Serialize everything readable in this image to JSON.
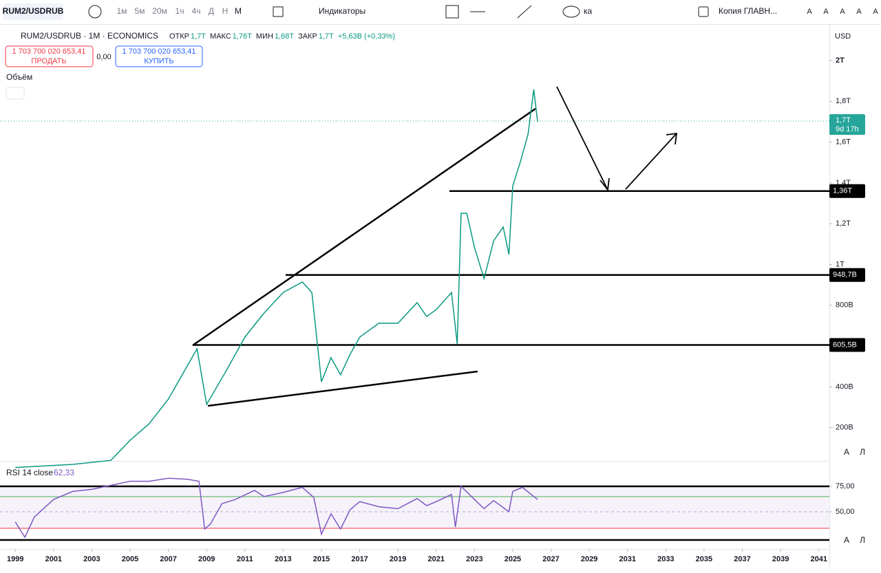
{
  "toolbar": {
    "symbol": "RUM2/USDRUB",
    "intervals": [
      "1м",
      "5м",
      "20м",
      "1ч",
      "4ч",
      "Д",
      "Н",
      "М"
    ],
    "indicators": "Индикаторы",
    "tool_fragment": "ка",
    "layout": "Копия ГЛАВН...",
    "font_buttons": [
      "A",
      "A",
      "A",
      "A",
      "A"
    ]
  },
  "legend": {
    "title": "RUM2/USDRUB · 1M · ECONOMICS",
    "ohlc": [
      {
        "label": "ОТКР",
        "value": "1,7T"
      },
      {
        "label": "МАКС",
        "value": "1,76T"
      },
      {
        "label": "МИН",
        "value": "1,68T"
      },
      {
        "label": "ЗАКР",
        "value": "1,7T"
      }
    ],
    "change": "+5,63B (+0,33%)"
  },
  "trade": {
    "sell_price": "1 703 700 020 653,41",
    "sell": "ПРОДАТЬ",
    "spread": "0,00",
    "buy_price": "1 703 700 020 653,41",
    "buy": "КУПИТЬ"
  },
  "volume_label": "Объём",
  "price_chart": {
    "type": "line",
    "currency": "USD",
    "x": [
      1999,
      2000,
      2002,
      2004,
      2005,
      2006,
      2007,
      2008.5,
      2009,
      2010,
      2011,
      2012,
      2013,
      2014,
      2014.5,
      2015,
      2015.5,
      2016,
      2016.5,
      2017,
      2018,
      2019,
      2020,
      2020.5,
      2021,
      2021.8,
      2022.1,
      2022.3,
      2022.6,
      2023,
      2023.5,
      2024,
      2024.5,
      2024.8,
      2025,
      2025.4,
      2025.8,
      2026.1,
      2026.3
    ],
    "values": [
      5,
      10,
      20,
      40,
      138,
      220,
      340,
      587,
      314,
      475,
      644,
      762,
      863,
      914,
      863,
      425,
      543,
      459,
      560,
      644,
      712,
      712,
      813,
      745,
      779,
      863,
      610,
      1251,
      1251,
      1083,
      931,
      1116,
      1184,
      1049,
      1386,
      1504,
      1639,
      1858,
      1700
    ],
    "ylim": [
      44,
      2162
    ],
    "yticks": [
      {
        "value": 200,
        "label": "200B"
      },
      {
        "value": 400,
        "label": "400B"
      },
      {
        "value": 800,
        "label": "800B"
      },
      {
        "value": 1000,
        "label": "1T"
      },
      {
        "value": 1200,
        "label": "1,2T"
      },
      {
        "value": 1400,
        "label": "1,4T"
      },
      {
        "value": 1600,
        "label": "1,6T"
      },
      {
        "value": 1800,
        "label": "1,8T"
      },
      {
        "value": 2000,
        "label": "2T"
      }
    ],
    "levels": [
      {
        "value": 1360,
        "label": "1,36T"
      },
      {
        "value": 948.7,
        "label": "948,7B"
      },
      {
        "value": 605.5,
        "label": "605,5B"
      }
    ],
    "last": {
      "value": 1700,
      "label": "1,7T",
      "countdown": "9d 17h"
    },
    "scale_buttons": [
      "А",
      "Л"
    ]
  },
  "rsi": {
    "title": "RSI 14 close",
    "last": "62,33",
    "x": [
      1999,
      1999.5,
      2000,
      2001,
      2002,
      2003,
      2004,
      2005,
      2006,
      2007,
      2008,
      2008.6,
      2008.9,
      2009.2,
      2009.8,
      2010.5,
      2011.5,
      2012,
      2013,
      2014,
      2014.6,
      2015,
      2015.5,
      2016,
      2016.5,
      2017,
      2018,
      2019,
      2020,
      2020.5,
      2021,
      2021.8,
      2022,
      2022.3,
      2023,
      2023.5,
      2024,
      2024.8,
      2025,
      2025.5,
      2026.3
    ],
    "values": [
      40,
      25,
      45,
      62,
      70,
      72,
      76,
      80,
      80,
      83,
      82,
      80,
      33,
      38,
      58,
      62,
      71,
      65,
      69,
      74,
      64,
      28,
      48,
      33,
      52,
      60,
      55,
      53,
      63,
      56,
      60,
      67,
      35,
      75,
      62,
      53,
      61,
      50,
      70,
      74,
      62
    ],
    "ylim": [
      15.5,
      98
    ],
    "yticks": [
      {
        "value": 75,
        "label": "75,00"
      },
      {
        "value": 50,
        "label": "50,00"
      }
    ],
    "scale_buttons": [
      "А",
      "Л"
    ]
  },
  "xaxis": {
    "xlim": [
      1998.2,
      2041.55
    ],
    "xticks": [
      1999,
      2001,
      2003,
      2005,
      2007,
      2009,
      2011,
      2013,
      2015,
      2017,
      2019,
      2021,
      2023,
      2025,
      2027,
      2029,
      2031,
      2033,
      2035,
      2037,
      2039,
      2041
    ]
  }
}
